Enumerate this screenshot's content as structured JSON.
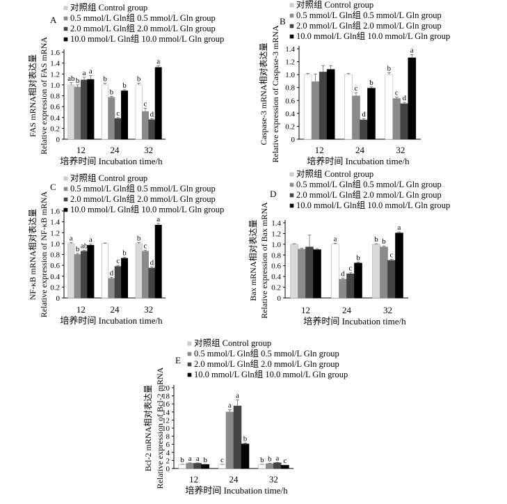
{
  "chart_data": [
    {
      "type": "bar",
      "panel": "A",
      "legend": [
        "对照组  Control group",
        "0.5 mmol/L Gln组  0.5 mmol/L Gln group",
        "2.0 mmol/L Gln组  2.0 mmol/L Gln group",
        "10.0 mmol/L Gln组  10.0 mmol/L Gln group"
      ],
      "ylabel_cn": "FAS mRNA相对表达量",
      "ylabel_en": "Relative expression of FAS mRNA",
      "xlabel": "培养时间   Incubation time/h",
      "categories": [
        "12",
        "24",
        "32"
      ],
      "ylim": [
        0,
        1.6
      ],
      "yticks": [
        "0",
        "0.2",
        "0.4",
        "0.6",
        "0.8",
        "1.0",
        "1.2",
        "1.4",
        "1.6"
      ],
      "series": [
        {
          "values": [
            1.0,
            1.0,
            1.0
          ],
          "errors": [
            0.04,
            0.03,
            0.03
          ],
          "letters": [
            "ab",
            "b",
            "b"
          ]
        },
        {
          "values": [
            0.96,
            0.77,
            0.51
          ],
          "errors": [
            0.04,
            0.02,
            0.06
          ],
          "letters": [
            "b",
            "b",
            "c"
          ]
        },
        {
          "values": [
            1.09,
            0.38,
            0.36
          ],
          "errors": [
            0.05,
            0.02,
            0.02
          ],
          "letters": [
            "a",
            "c",
            "d"
          ]
        },
        {
          "values": [
            1.1,
            0.89,
            1.32
          ],
          "errors": [
            0.07,
            0.02,
            0.03
          ],
          "letters": [
            "a",
            "b",
            "a"
          ]
        }
      ]
    },
    {
      "type": "bar",
      "panel": "B",
      "legend": [
        "对照组  Control group",
        "0.5 mmol/L Gln组  0.5 mmol/L Gln group",
        "2.0 mmol/L Gln组  2.0 mmol/L Gln group",
        "10.0 mmol/L Gln组  10.0 mmol/L Gln group"
      ],
      "ylabel_cn": "Caspase-3 mRNA相对表达量",
      "ylabel_en": "Relative expression of Caspase-3 mRNA",
      "xlabel": "培养时间   Incubation time/h",
      "categories": [
        "12",
        "24",
        "32"
      ],
      "ylim": [
        0,
        1.4
      ],
      "yticks": [
        "0",
        "0.2",
        "0.4",
        "0.6",
        "0.8",
        "1.0",
        "1.2",
        "1.4"
      ],
      "series": [
        {
          "values": [
            1.0,
            1.0,
            1.0
          ],
          "errors": [
            0.02,
            0.02,
            0.03
          ],
          "letters": [
            "",
            "",
            "b"
          ]
        },
        {
          "values": [
            0.89,
            0.67,
            0.63
          ],
          "errors": [
            0.12,
            0.05,
            0.02
          ],
          "letters": [
            "",
            "c",
            "c"
          ]
        },
        {
          "values": [
            1.04,
            0.3,
            0.55
          ],
          "errors": [
            0.1,
            0.02,
            0.02
          ],
          "letters": [
            "",
            "d",
            "d"
          ]
        },
        {
          "values": [
            1.08,
            0.79,
            1.26
          ],
          "errors": [
            0.06,
            0.02,
            0.05
          ],
          "letters": [
            "",
            "b",
            "a"
          ]
        }
      ]
    },
    {
      "type": "bar",
      "panel": "C",
      "legend": [
        "对照组  Control group",
        "0.5 mmol/L Gln组  0.5 mmol/L Gln group",
        "2.0 mmol/L Gln组  2.0 mmol/L Gln group",
        "10.0 mmol/L Gln组  10.0 mmol/L Gln group"
      ],
      "ylabel_cn": "NF-κB mRNA相对表达量",
      "ylabel_en": "Relative expression of NF-κB mRNA",
      "xlabel": "培养时间   Incubation time/h",
      "categories": [
        "12",
        "24",
        "32"
      ],
      "ylim": [
        0,
        1.6
      ],
      "yticks": [
        "0",
        "0.2",
        "0.4",
        "0.6",
        "0.8",
        "1.0",
        "1.2",
        "1.4",
        "1.6"
      ],
      "series": [
        {
          "values": [
            1.0,
            1.0,
            1.0
          ],
          "errors": [
            0.02,
            0.01,
            0.02
          ],
          "letters": [
            "a",
            "",
            "b"
          ]
        },
        {
          "values": [
            0.8,
            0.36,
            0.86
          ],
          "errors": [
            0.02,
            0.02,
            0.02
          ],
          "letters": [
            "b",
            "d",
            "c"
          ]
        },
        {
          "values": [
            0.86,
            0.58,
            0.55
          ],
          "errors": [
            0.02,
            0.02,
            0.02
          ],
          "letters": [
            "ab",
            "c",
            "d"
          ]
        },
        {
          "values": [
            0.97,
            0.73,
            1.34
          ],
          "errors": [
            0.02,
            0.02,
            0.03
          ],
          "letters": [
            "a",
            "b",
            "a"
          ]
        }
      ]
    },
    {
      "type": "bar",
      "panel": "D",
      "legend": [
        "对照组  Control group",
        "0.5 mmol/L Gln组  0.5 mmol/L Gln group",
        "2.0 mmol/L Gln组  2.0 mmol/L Gln group",
        "10.0 mmol/L Gln组  10.0 mmol/L Gln group"
      ],
      "ylabel_cn": "Bax mRNA相对表达量",
      "ylabel_en": "Relative expression of Bax mRNA",
      "xlabel": "培养时间   Incubation time/h",
      "categories": [
        "12",
        "24",
        "32"
      ],
      "ylim": [
        0,
        1.4
      ],
      "yticks": [
        "0",
        "0.2",
        "0.4",
        "0.6",
        "0.8",
        "1.0",
        "1.2",
        "1.4"
      ],
      "series": [
        {
          "values": [
            1.0,
            1.0,
            1.0
          ],
          "errors": [
            0.01,
            0.02,
            0.01
          ],
          "letters": [
            "",
            "a",
            "b"
          ]
        },
        {
          "values": [
            0.91,
            0.35,
            0.95
          ],
          "errors": [
            0.02,
            0.02,
            0.02
          ],
          "letters": [
            "",
            "d",
            "b"
          ]
        },
        {
          "values": [
            0.95,
            0.45,
            0.7
          ],
          "errors": [
            0.22,
            0.02,
            0.02
          ],
          "letters": [
            "",
            "c",
            "c"
          ]
        },
        {
          "values": [
            0.9,
            0.65,
            1.21
          ],
          "errors": [
            0.02,
            0.02,
            0.02
          ],
          "letters": [
            "",
            "b",
            "a"
          ]
        }
      ]
    },
    {
      "type": "bar",
      "panel": "E",
      "legend": [
        "对照组  Control group",
        "0.5 mmol/L Gln组  0.5 mmol/L Gln group",
        "2.0 mmol/L Gln组  2.0 mmol/L Gln group",
        "10.0 mmol/L Gln组  10.0 mmol/L Gln group"
      ],
      "ylabel_cn": "Bcl-2 mRNA相对表达量",
      "ylabel_en": "Relative expression of Bcl-2 mRNA",
      "xlabel": "培养时间   Incubation time/h",
      "categories": [
        "12",
        "24",
        "32"
      ],
      "ylim": [
        0,
        20
      ],
      "yticks": [
        "0",
        "2",
        "4",
        "6",
        "8",
        "10",
        "12",
        "14",
        "16",
        "18",
        "20"
      ],
      "series": [
        {
          "values": [
            1.0,
            1.0,
            1.0
          ],
          "errors": [
            0.05,
            0.05,
            0.05
          ],
          "letters": [
            "b",
            "c",
            "b"
          ]
        },
        {
          "values": [
            1.3,
            14.0,
            1.2
          ],
          "errors": [
            0.1,
            0.6,
            0.1
          ],
          "letters": [
            "a",
            "a",
            "b"
          ]
        },
        {
          "values": [
            1.3,
            15.5,
            1.4
          ],
          "errors": [
            0.1,
            1.5,
            0.1
          ],
          "letters": [
            "a",
            "a",
            "a"
          ]
        },
        {
          "values": [
            1.0,
            6.1,
            0.8
          ],
          "errors": [
            0.05,
            0.2,
            0.05
          ],
          "letters": [
            "b",
            "b",
            "c"
          ]
        }
      ]
    }
  ],
  "colors": {
    "control": "#ffffff",
    "gln_0_5": "#8a8a8a",
    "gln_2_0": "#444444",
    "gln_10": "#000000",
    "control_12h_A": "#d9d9d9"
  }
}
